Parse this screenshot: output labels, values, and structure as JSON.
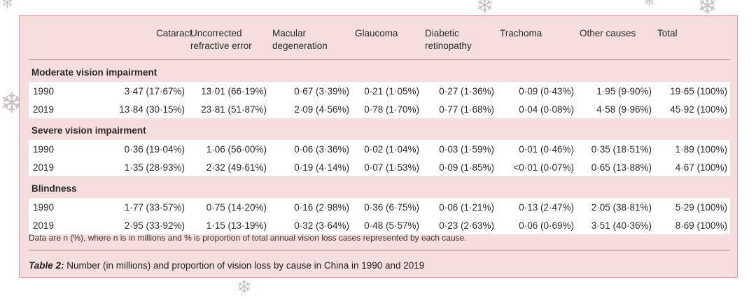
{
  "table": {
    "columns": [
      "",
      "Cataract",
      "Uncorrected refractive error",
      "Macular degeneration",
      "Glaucoma",
      "Diabetic retinopathy",
      "Trachoma",
      "Other causes",
      "Total"
    ],
    "sections": [
      {
        "title": "Moderate vision impairment",
        "rows": [
          [
            "1990",
            "3·47 (17·67%)",
            "13·01 (66·19%)",
            "0·67 (3·39%)",
            "0·21 (1·05%)",
            "0·27 (1·36%)",
            "0·09 (0·43%)",
            "1·95 (9·90%)",
            "19·65 (100%)"
          ],
          [
            "2019",
            "13·84 (30·15%)",
            "23·81 (51·87%)",
            "2·09 (4·56%)",
            "0·78 (1·70%)",
            "0·77 (1·68%)",
            "0·04 (0·08%)",
            "4·58 (9·96%)",
            "45·92 (100%)"
          ]
        ]
      },
      {
        "title": "Severe vision impairment",
        "rows": [
          [
            "1990",
            "0·36 (19·04%)",
            "1·06 (56·00%)",
            "0·06 (3·36%)",
            "0·02 (1·04%)",
            "0·03 (1·59%)",
            "0·01 (0·46%)",
            "0·35 (18·51%)",
            "1·89 (100%)"
          ],
          [
            "2019",
            "1·35 (28·93%)",
            "2·32 (49·61%)",
            "0·19 (4·14%)",
            "0·07 (1·53%)",
            "0·09 (1·85%)",
            "<0·01 (0·07%)",
            "0·65 (13·88%)",
            "4·67 (100%)"
          ]
        ]
      },
      {
        "title": "Blindness",
        "rows": [
          [
            "1990",
            "1·77 (33·57%)",
            "0·75 (14·20%)",
            "0·16 (2·98%)",
            "0·36 (6·75%)",
            "0·06 (1·21%)",
            "0·13 (2·47%)",
            "2·05 (38·81%)",
            "5·29 (100%)"
          ],
          [
            "2019",
            "2·95 (33·92%)",
            "1·15 (13·19%)",
            "0·32 (3·64%)",
            "0·48 (5·57%)",
            "0·23 (2·63%)",
            "0·06 (0·69%)",
            "3·51 (40·36%)",
            "8·69 (100%)"
          ]
        ]
      }
    ]
  },
  "note": "Data are n (%), where n is in millions and % is proportion of total annual vision loss cases represented by each cause.",
  "caption": {
    "label": "Table 2:",
    "text": " Number (in millions) and proportion of vision loss by cause in China in 1990 and 2019"
  },
  "decorations": {
    "flake_glyph": "❄",
    "flake_color": "#c9c2c2"
  }
}
